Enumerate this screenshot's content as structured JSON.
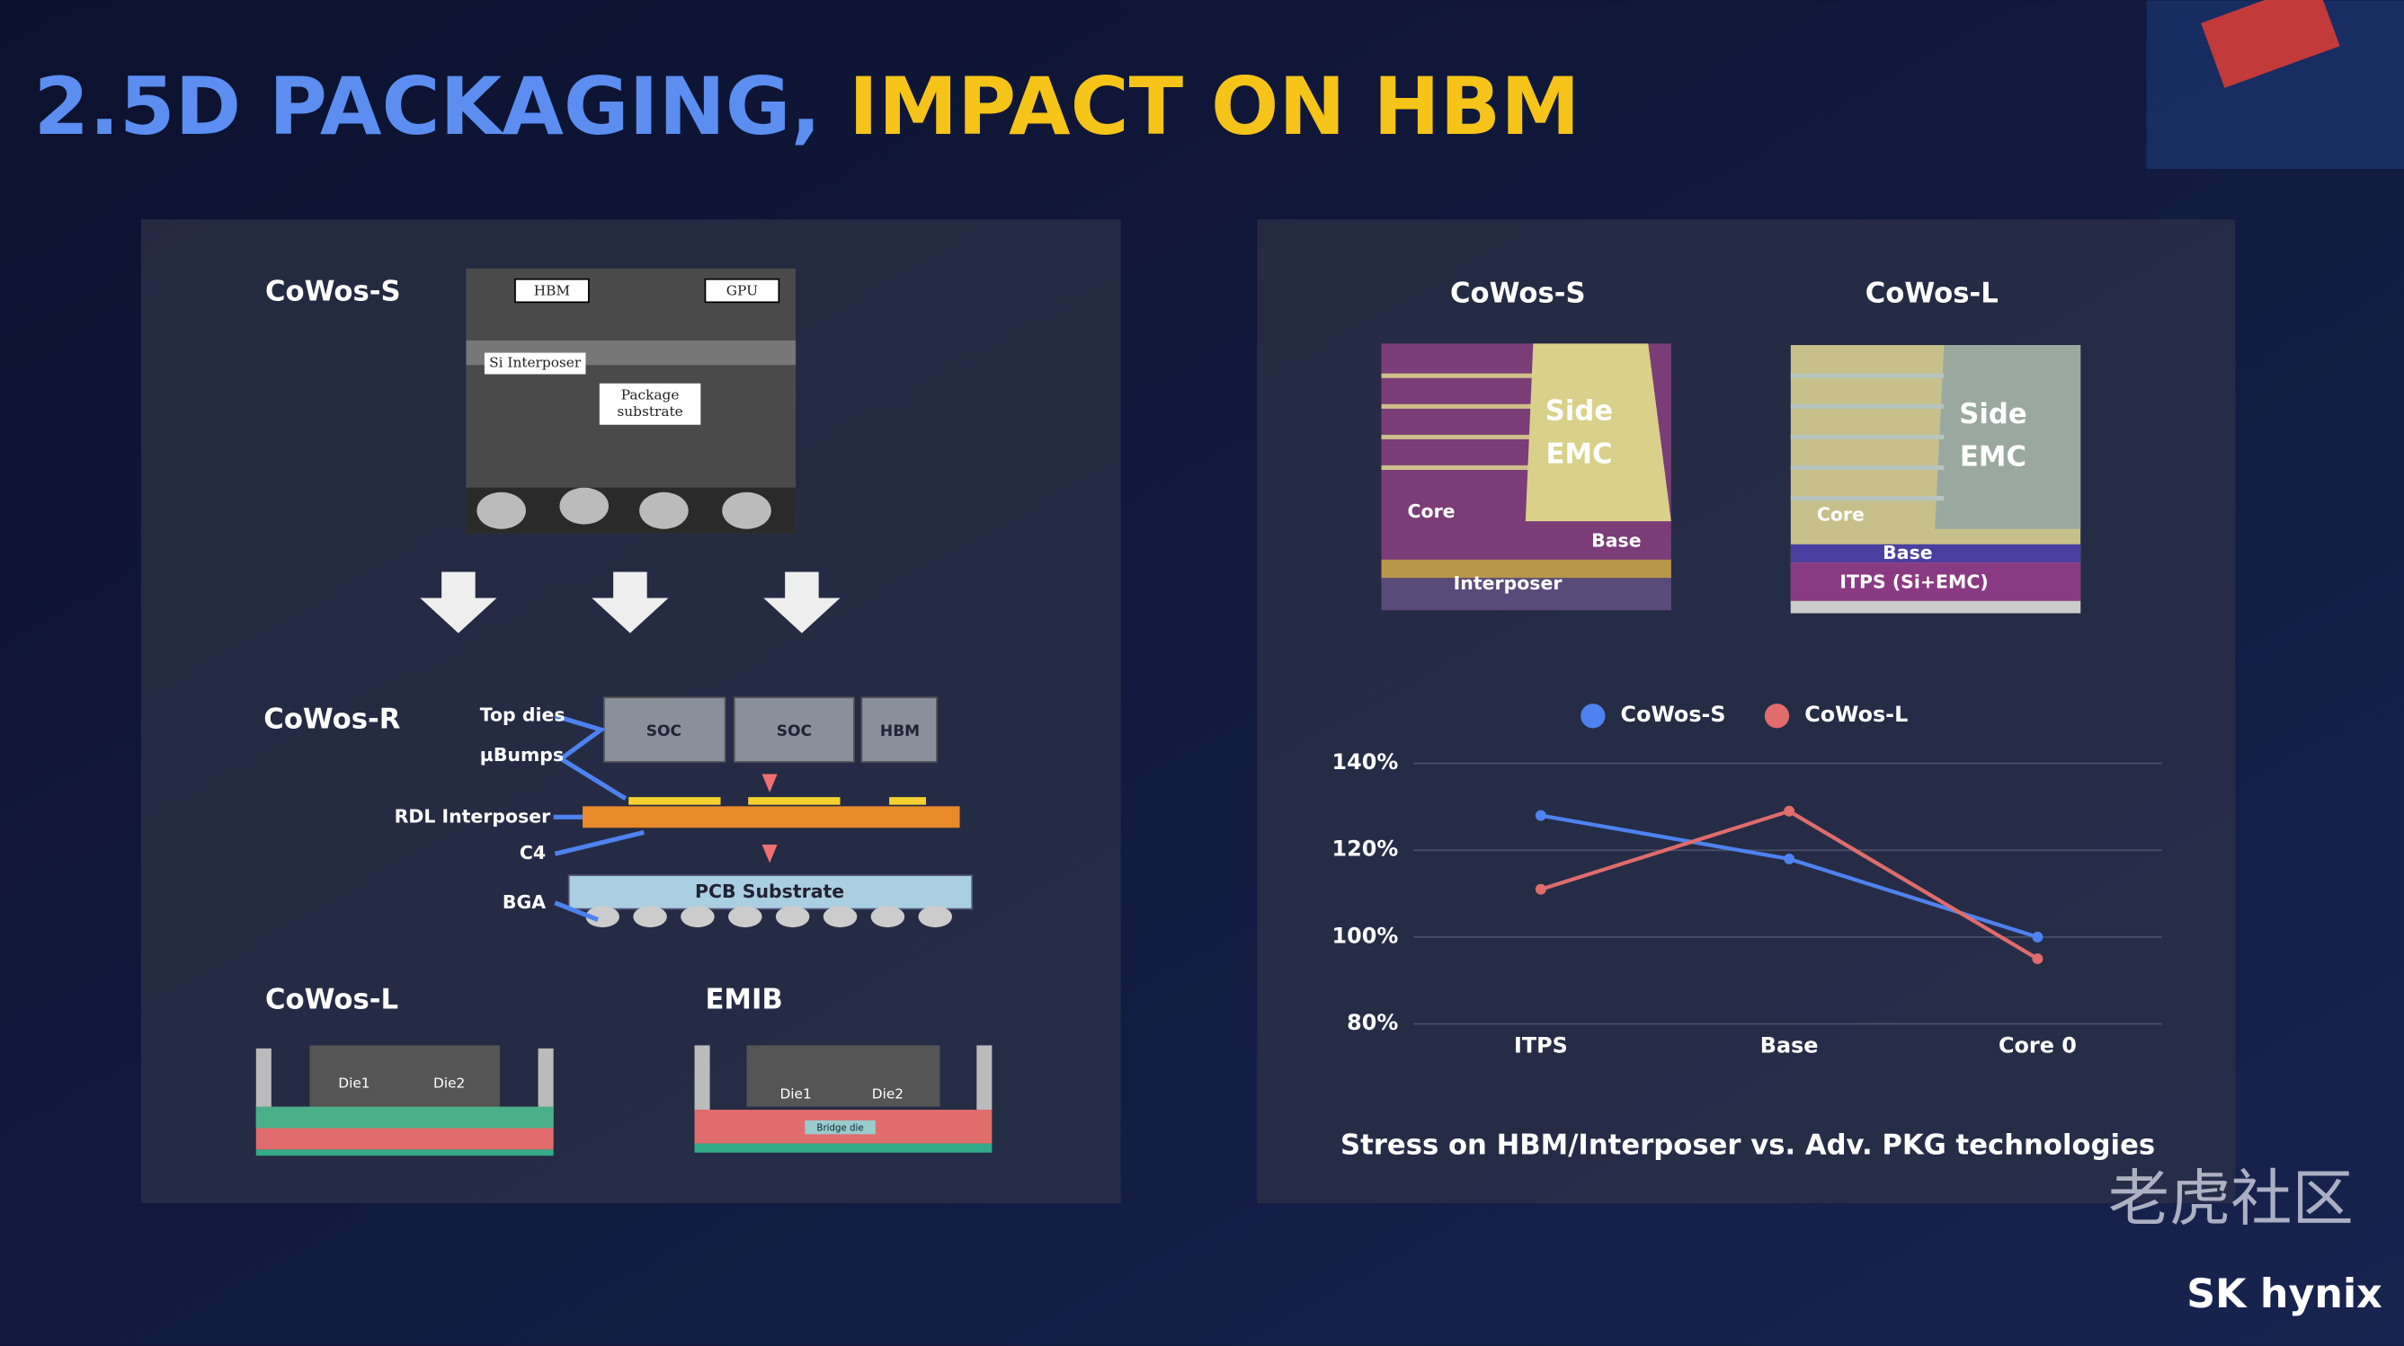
{
  "title": {
    "part1": "2.5D PACKAGING,",
    "part2": "IMPACT ON HBM"
  },
  "left_panel": {
    "cowos_s": {
      "label": "CoWos-S",
      "image_labels": [
        "HBM",
        "GPU",
        "Si Interposer",
        "Package",
        "substrate"
      ]
    },
    "cowos_r": {
      "label": "CoWos-R",
      "callouts": [
        "Top dies",
        "µBumps",
        "RDL Interposer",
        "C4",
        "BGA"
      ],
      "blocks": [
        "SOC",
        "SOC",
        "HBM",
        "PCB Substrate"
      ]
    },
    "cowos_l": {
      "label": "CoWos-L",
      "dies": [
        "Die1",
        "Die2"
      ]
    },
    "emib": {
      "label": "EMIB",
      "dies": [
        "Die1",
        "Die2",
        "Bridge die"
      ]
    }
  },
  "right_panel": {
    "cross_sections": [
      {
        "label": "CoWos-S",
        "regions": [
          "Side",
          "EMC",
          "Core",
          "Base",
          "Interposer"
        ]
      },
      {
        "label": "CoWos-L",
        "regions": [
          "Side",
          "EMC",
          "Core",
          "Base",
          "ITPS (Si+EMC)"
        ]
      }
    ]
  },
  "chart_data": {
    "type": "line",
    "categories": [
      "ITPS",
      "Base",
      "Core 0"
    ],
    "series": [
      {
        "name": "CoWos-S",
        "color": "#4e82f0",
        "values": [
          128,
          118,
          100
        ]
      },
      {
        "name": "CoWos-L",
        "color": "#e06c6c",
        "values": [
          111,
          129,
          95
        ]
      }
    ],
    "ylim": [
      80,
      140
    ],
    "yticks": [
      {
        "value": 80,
        "label": "80%"
      },
      {
        "value": 100,
        "label": "100%"
      },
      {
        "value": 120,
        "label": "120%"
      },
      {
        "value": 140,
        "label": "140%"
      }
    ],
    "grid": true,
    "legend": "top",
    "caption": "Stress on HBM/Interposer vs. Adv. PKG technologies"
  },
  "watermark": {
    "text": "老虎社区",
    "logo": "SK hynix"
  }
}
